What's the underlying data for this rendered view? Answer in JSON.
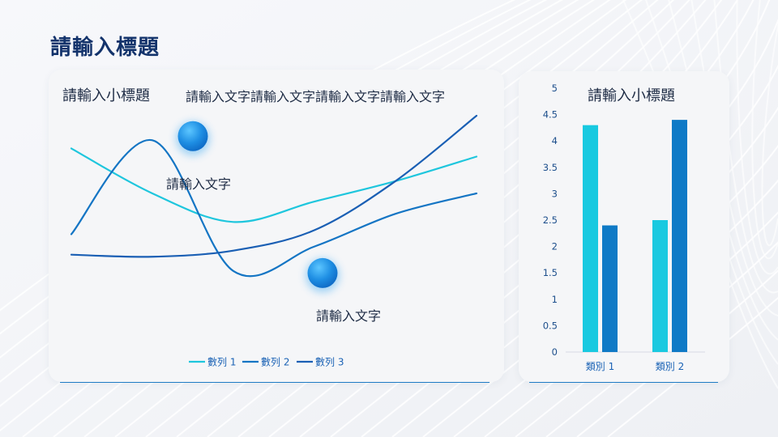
{
  "page": {
    "title": "請輸入標題",
    "left_panel": {
      "subtitle": "請輸入小標題",
      "description": "請輸入文字請輸入文字請輸入文字請輸入文字",
      "callouts": [
        "請輸入文字",
        "請輸入文字"
      ]
    },
    "right_panel": {
      "subtitle": "請輸入小標題"
    }
  },
  "chart_data": [
    {
      "type": "line",
      "smooth": true,
      "x": [
        1,
        2,
        3,
        4,
        5,
        6
      ],
      "series": [
        {
          "name": "數列 1",
          "values": [
            4.0,
            2.9,
            2.2,
            2.7,
            3.2,
            3.8
          ],
          "color": "#1ec6dd"
        },
        {
          "name": "數列 2",
          "values": [
            1.9,
            4.2,
            1.0,
            1.6,
            2.4,
            2.9
          ],
          "color": "#1475c4"
        },
        {
          "name": "數列 3",
          "values": [
            1.4,
            1.35,
            1.5,
            2.0,
            3.2,
            4.8
          ],
          "color": "#1a5fb4"
        }
      ],
      "annotations": [
        {
          "series": "數列 2",
          "x": 2.5,
          "y": 4.3,
          "label": "請輸入文字"
        },
        {
          "series": "數列 2",
          "x": 4.1,
          "y": 0.95,
          "label": "請輸入文字"
        }
      ],
      "legend": "bottom"
    },
    {
      "type": "bar",
      "categories": [
        "類別 1",
        "類別 2"
      ],
      "series": [
        {
          "values": [
            4.3,
            2.5
          ],
          "color": "#19c9e0"
        },
        {
          "values": [
            2.4,
            4.4
          ],
          "color": "#0f7ac6"
        }
      ],
      "ylim": [
        0,
        5
      ],
      "yticks": [
        "0",
        "0.5",
        "1",
        "1.5",
        "2",
        "2.5",
        "3",
        "3.5",
        "4",
        "4.5",
        "5"
      ],
      "grid": false
    }
  ]
}
